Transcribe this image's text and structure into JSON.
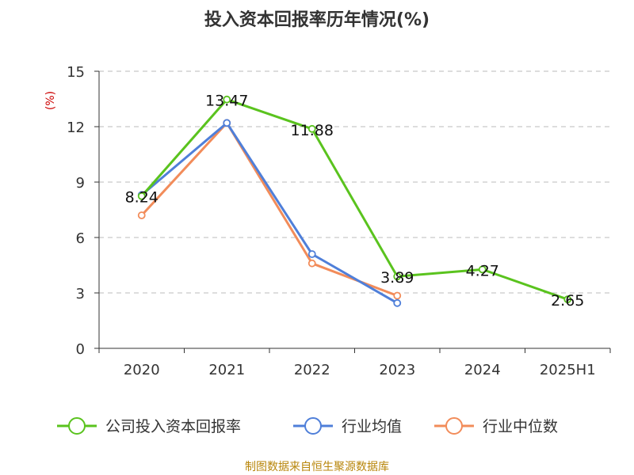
{
  "chart_data": {
    "type": "line",
    "title": "投入资本回报率历年情况(%)",
    "unit_label": "(%)",
    "categories": [
      "2020",
      "2021",
      "2022",
      "2023",
      "2024",
      "2025H1"
    ],
    "ylim": [
      0,
      15
    ],
    "yticks": [
      0,
      3,
      6,
      9,
      12,
      15
    ],
    "grid": true,
    "legend_position": "bottom",
    "series": [
      {
        "name": "公司投入资本回报率",
        "color": "#5ac31e",
        "values": [
          8.24,
          13.47,
          11.88,
          3.89,
          4.27,
          2.65
        ],
        "labels": [
          "8.24",
          "13.47",
          "11.88",
          "3.89",
          "4.27",
          "2.65"
        ]
      },
      {
        "name": "行业均值",
        "color": "#4f7fd9",
        "values": [
          8.3,
          12.2,
          5.1,
          2.45,
          null,
          null
        ]
      },
      {
        "name": "行业中位数",
        "color": "#f28c5a",
        "values": [
          7.2,
          12.2,
          4.6,
          2.85,
          null,
          null
        ]
      }
    ]
  },
  "source_text": "制图数据来自恒生聚源数据库"
}
